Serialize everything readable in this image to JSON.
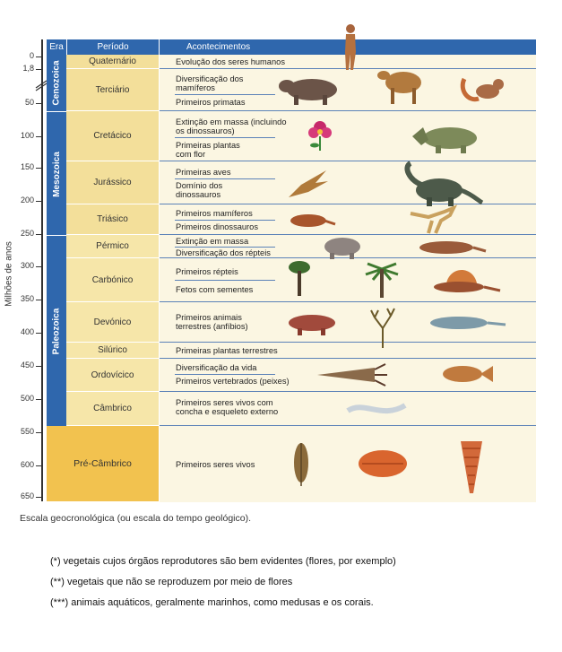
{
  "axis": {
    "title": "Milhões de anos",
    "ticks": [
      "0",
      "1,8",
      "50",
      "100",
      "150",
      "200",
      "250",
      "300",
      "350",
      "400",
      "450",
      "500",
      "550",
      "600",
      "650"
    ]
  },
  "headers": {
    "era": "Era",
    "period": "Período",
    "events": "Acontecimentos"
  },
  "eras": [
    {
      "name": "Cenozoica"
    },
    {
      "name": "Mesozoica"
    },
    {
      "name": "Paleozoica"
    }
  ],
  "periods": [
    {
      "name": "Quaternário",
      "events": [
        "Evolução dos seres humanos"
      ]
    },
    {
      "name": "Terciário",
      "events": [
        "Diversificação dos mamíferos",
        "Primeiros primatas"
      ]
    },
    {
      "name": "Cretácico",
      "events": [
        "Extinção em massa (incluindo os dinossauros)",
        "Primeiras plantas com flor"
      ]
    },
    {
      "name": "Jurássico",
      "events": [
        "Primeiras aves",
        "Domínio dos dinossauros"
      ]
    },
    {
      "name": "Triásico",
      "events": [
        "Primeiros mamíferos",
        "Primeiros dinossauros"
      ]
    },
    {
      "name": "Pérmico",
      "events": [
        "Extinção em massa",
        "Diversificação dos répteis"
      ]
    },
    {
      "name": "Carbónico",
      "events": [
        "Primeiros répteis",
        "Fetos com sementes"
      ]
    },
    {
      "name": "Devónico",
      "events": [
        "Primeiros animais terrestres (anfíbios)"
      ]
    },
    {
      "name": "Silúrico",
      "events": [
        "Primeiras plantas terrestres"
      ]
    },
    {
      "name": "Ordovícico",
      "events": [
        "Diversificação da vida",
        "Primeiros vertebrados (peixes)"
      ]
    },
    {
      "name": "Câmbrico",
      "events": [
        "Primeiros seres vivos com concha e esqueleto externo"
      ]
    },
    {
      "name": "Pré-Câmbrico",
      "events": [
        "Primeiros seres vivos"
      ]
    }
  ],
  "caption": "Escala geocronológica (ou escala do tempo geológico).",
  "notes": [
    "(*)  vegetais cujos órgãos reprodutores são bem evidentes (flores, por exemplo)",
    "(**) vegetais que não se reproduzem por meio de flores",
    "(***) animais aquáticos, geralmente marinhos, como medusas e os corais."
  ],
  "colors": {
    "header": "#2f67ad",
    "period_mesozoic": "#f3df9a",
    "period_paleozoic": "#f6e6a9",
    "precambrian": "#f2c24f",
    "events_bg": "#fbf6e2"
  }
}
